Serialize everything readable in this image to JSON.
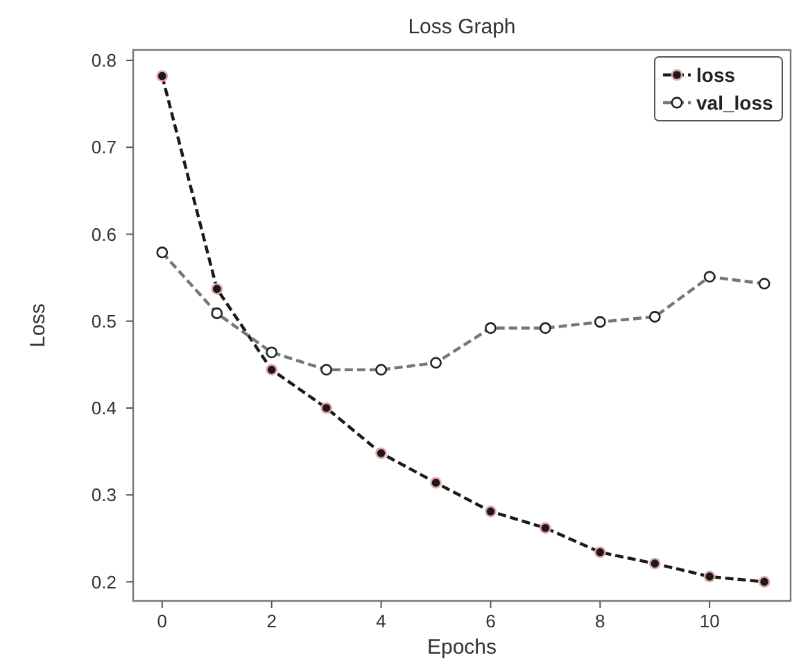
{
  "chart_data": {
    "type": "line",
    "title": "Loss Graph",
    "xlabel": "Epochs",
    "ylabel": "Loss",
    "x": [
      0,
      1,
      2,
      3,
      4,
      5,
      6,
      7,
      8,
      9,
      10,
      11
    ],
    "series": [
      {
        "name": "loss",
        "color": "#1a1a1a",
        "values": [
          0.782,
          0.537,
          0.444,
          0.4,
          0.348,
          0.314,
          0.281,
          0.262,
          0.234,
          0.221,
          0.206,
          0.2
        ]
      },
      {
        "name": "val_loss",
        "color": "#777777",
        "values": [
          0.579,
          0.509,
          0.464,
          0.444,
          0.444,
          0.452,
          0.492,
          0.492,
          0.499,
          0.505,
          0.551,
          0.543
        ]
      }
    ],
    "xlim": [
      -0.53,
      11.48
    ],
    "ylim": [
      0.178,
      0.812
    ],
    "xticks": [
      0,
      2,
      4,
      6,
      8,
      10
    ],
    "yticks": [
      0.2,
      0.3,
      0.4,
      0.5,
      0.6,
      0.7,
      0.8
    ],
    "grid": false,
    "legend": "top right",
    "marker": "circle",
    "line_style": "dashed"
  }
}
